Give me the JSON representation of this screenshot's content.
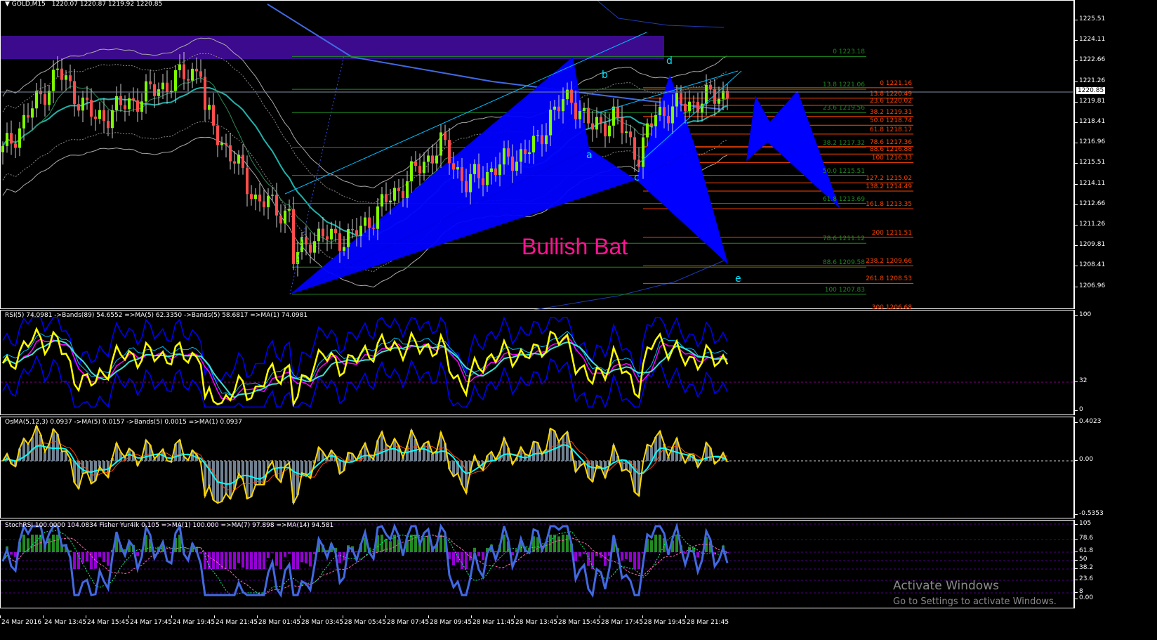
{
  "header": {
    "symbol": "GOLD,M15",
    "ohlc": "1220.07 1220.87 1219.92 1220.85"
  },
  "price_axis": {
    "labels": [
      "1225.51",
      "1224.11",
      "1222.66",
      "1221.26",
      "1219.81",
      "1218.41",
      "1216.96",
      "1215.51",
      "1214.11",
      "1212.66",
      "1211.26",
      "1209.81",
      "1208.41",
      "1206.96"
    ],
    "current_price": "1220.85"
  },
  "pattern": {
    "title": "Bullish Bat",
    "points": [
      "a",
      "b",
      "c",
      "d",
      "e"
    ],
    "color_title": "#ff1493",
    "color_points": "#00e5ff",
    "fill": "#0000ff"
  },
  "fib_green": [
    {
      "label": "0 1223.18",
      "price": 1223.18
    },
    {
      "label": "13.8 1221.06",
      "price": 1221.06
    },
    {
      "label": "23.6 1219.56",
      "price": 1219.56
    },
    {
      "label": "38.2 1217.32",
      "price": 1217.32
    },
    {
      "label": "50.0 1215.51",
      "price": 1215.51
    },
    {
      "label": "61.8 1213.69",
      "price": 1213.69
    },
    {
      "label": "78.6 1211.12",
      "price": 1211.12
    },
    {
      "label": "88.6 1209.58",
      "price": 1209.58
    },
    {
      "label": "100 1207.83",
      "price": 1207.83
    }
  ],
  "fib_orange": [
    {
      "label": "0 1221.16",
      "price": 1221.16
    },
    {
      "label": "13.8 1220.49",
      "price": 1220.49
    },
    {
      "label": "23.6 1220.02",
      "price": 1220.02
    },
    {
      "label": "38.2 1219.31",
      "price": 1219.31
    },
    {
      "label": "50.0 1218.74",
      "price": 1218.74
    },
    {
      "label": "61.8 1218.17",
      "price": 1218.17
    },
    {
      "label": "78.6 1217.36",
      "price": 1217.36
    },
    {
      "label": "88.6 1216.88",
      "price": 1216.88
    },
    {
      "label": "100 1216.33",
      "price": 1216.33
    },
    {
      "label": "127.2 1215.02",
      "price": 1215.02
    },
    {
      "label": "138.2 1214.49",
      "price": 1214.49
    },
    {
      "label": "161.8 1213.35",
      "price": 1213.35
    },
    {
      "label": "200 1211.51",
      "price": 1211.51
    },
    {
      "label": "238.2 1209.66",
      "price": 1209.66
    },
    {
      "label": "261.8 1208.53",
      "price": 1208.53
    },
    {
      "label": "300 1206.68",
      "price": 1206.68
    }
  ],
  "chart_data": {
    "type": "candlestick",
    "close_keypoints_bar_price": [
      [
        0,
        1217
      ],
      [
        13,
        1222.2
      ],
      [
        22,
        1219.1
      ],
      [
        47,
        1222.5
      ],
      [
        48,
        1219.5
      ],
      [
        57,
        1215.5
      ],
      [
        60,
        1214
      ],
      [
        68,
        1213
      ],
      [
        69,
        1210
      ],
      [
        73,
        1211.5
      ],
      [
        83,
        1211.5
      ],
      [
        90,
        1213.5
      ],
      [
        97,
        1215.5
      ],
      [
        104,
        1217.5
      ],
      [
        110,
        1215
      ],
      [
        117,
        1216
      ],
      [
        127,
        1217.5
      ],
      [
        130,
        1219.5
      ],
      [
        135,
        1220.5
      ],
      [
        140,
        1218.5
      ],
      [
        145,
        1219.3
      ],
      [
        151,
        1216.8
      ],
      [
        155,
        1219.5
      ],
      [
        172,
        1220.85
      ]
    ],
    "colors": {
      "bull": "#7cfc00",
      "bear": "#ff4c4c",
      "zone": "#3c0a8c"
    }
  },
  "rsi_pane": {
    "header": "RSI(5) 74.0981  ->Bands(89) 54.6552  =>MA(5) 62.3350  ->Bands(5) 58.6817  =>MA(1) 74.0981",
    "axis": [
      "100",
      "32",
      "0"
    ]
  },
  "osma_pane": {
    "header": "OsMA(5,12,3) 0.0937  ->MA(5) 0.0157  ->Bands(5) 0.0015  =>MA(1) 0.0937",
    "axis": [
      "0.4023",
      "0.00",
      "-0.5353"
    ]
  },
  "stoch_pane": {
    "header": "StochRSI 100.0000 104.0834  Fisher Yur4ik 0.105  =>MA(1) 100.000  =>MA(7) 97.898  =>MA(14) 94.581",
    "axis": [
      "105",
      "78.6",
      "61.8",
      "50",
      "38.2",
      "23.6",
      "8",
      "0.00"
    ]
  },
  "time_axis": [
    "24 Mar 2016",
    "24 Mar 13:45",
    "24 Mar 15:45",
    "24 Mar 17:45",
    "24 Mar 19:45",
    "24 Mar 21:45",
    "28 Mar 01:45",
    "28 Mar 03:45",
    "28 Mar 05:45",
    "28 Mar 07:45",
    "28 Mar 09:45",
    "28 Mar 11:45",
    "28 Mar 13:45",
    "28 Mar 15:45",
    "28 Mar 17:45",
    "28 Mar 19:45",
    "28 Mar 21:45"
  ],
  "watermark": {
    "line1": "Activate Windows",
    "line2": "Go to Settings to activate Windows."
  }
}
